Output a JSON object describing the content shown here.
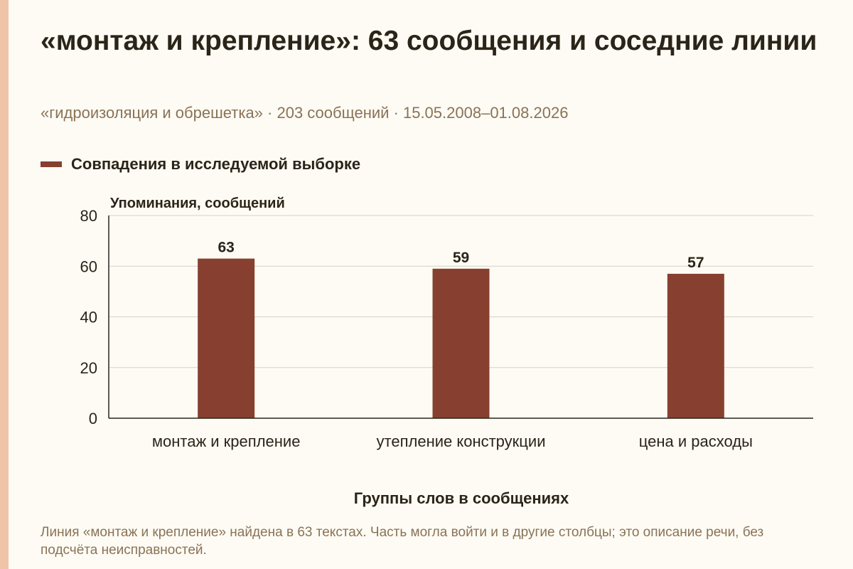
{
  "header": {
    "title": "«монтаж и крепление»: 63 сообщения и соседние линии",
    "subtitle": "«гидроизоляция и обрешетка» · 203 сообщений · 15.05.2008–01.08.2026"
  },
  "colors": {
    "bar": "#87402f",
    "accent_strip": "#f0c4a8",
    "background": "#fdfbf4"
  },
  "chart_data": {
    "type": "bar",
    "title": "",
    "categories": [
      "монтаж и крепление",
      "утепление конструкции",
      "цена и расходы"
    ],
    "series": [
      {
        "name": "Совпадения в исследуемой выборке",
        "values": [
          63,
          59,
          57
        ]
      }
    ],
    "xlabel": "Группы слов в сообщениях",
    "ylabel": "Упоминания, сообщений",
    "ylim": [
      0,
      80
    ],
    "yticks": [
      0,
      20,
      40,
      60,
      80
    ],
    "grid": true,
    "legend_position": "top-left",
    "data_labels": true
  },
  "note": "Линия «монтаж и крепление» найдена в 63 текстах. Часть могла войти и в другие столбцы; это описание речи, без подсчёта неисправностей."
}
